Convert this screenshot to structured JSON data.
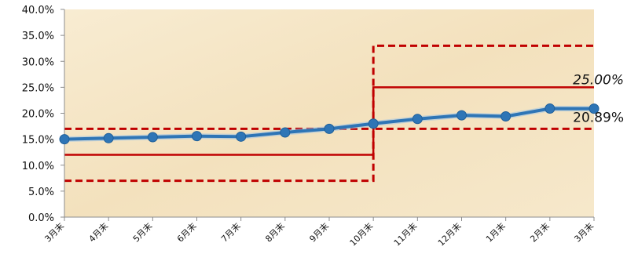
{
  "chart_data": {
    "type": "line",
    "title": "",
    "xlabel": "",
    "ylabel": "",
    "categories": [
      "3月末",
      "4月末",
      "5月末",
      "6月末",
      "7月末",
      "8月末",
      "9月末",
      "10月末",
      "11月末",
      "12月末",
      "1月末",
      "2月末",
      "3月末"
    ],
    "series": [
      {
        "values": [
          15.0,
          15.2,
          15.4,
          15.6,
          15.5,
          16.3,
          17.0,
          18.0,
          18.9,
          19.6,
          19.4,
          20.9,
          20.89
        ],
        "color": "#2e75b6"
      }
    ],
    "ylim": [
      0,
      40
    ],
    "yticks": [
      "0.0%",
      "5.0%",
      "10.0%",
      "15.0%",
      "20.0%",
      "25.0%",
      "30.0%",
      "35.0%",
      "40.0%"
    ],
    "reference_lines": [
      {
        "style": "solid",
        "color": "#c00000",
        "segments": [
          {
            "from": "3月末",
            "to": "10月末",
            "value": 12.0
          },
          {
            "from": "10月末",
            "to": "3月末",
            "value": 25.0
          }
        ]
      },
      {
        "style": "dashed",
        "color": "#c00000",
        "segments": [
          {
            "from": "3月末",
            "to": "10月末",
            "value": 17.0
          },
          {
            "from": "10月末",
            "to": "3月末",
            "value": 33.0
          }
        ]
      },
      {
        "style": "dashed",
        "color": "#c00000",
        "segments": [
          {
            "from": "3月末",
            "to": "10月末",
            "value": 7.0
          },
          {
            "from": "10月末",
            "to": "3月末",
            "value": 17.0
          }
        ]
      }
    ],
    "annotations": [
      {
        "text": "25.00%",
        "value": 25.0,
        "italic": true
      },
      {
        "text": "20.89%",
        "value": 20.89,
        "italic": false
      }
    ],
    "grid": false,
    "legend": "none",
    "background": "#f5e6c8"
  }
}
